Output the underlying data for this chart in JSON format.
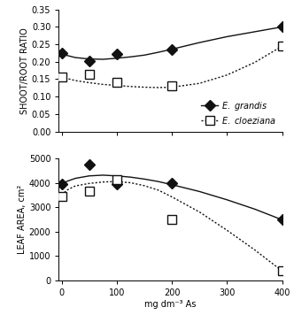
{
  "title": "",
  "xlabel": "mg dm⁻³ As",
  "ylabel_top": "SHOOT/ROOT RATIO",
  "ylabel_bottom": "LEAF AREA, cm²",
  "x_points": [
    0,
    50,
    100,
    200,
    400
  ],
  "grandis_ratio_points": [
    0.225,
    0.202,
    0.222,
    0.236,
    0.3
  ],
  "cloeziana_ratio_points": [
    0.157,
    0.163,
    0.14,
    0.13,
    0.245
  ],
  "grandis_leaf_points": [
    3960,
    4760,
    3960,
    3980,
    2480
  ],
  "cloeziana_leaf_points": [
    3450,
    3640,
    4130,
    2480,
    380
  ],
  "grandis_ratio_curve_x": [
    0,
    10,
    25,
    50,
    75,
    100,
    125,
    150,
    175,
    200,
    250,
    300,
    350,
    400
  ],
  "grandis_ratio_curve_y": [
    0.223,
    0.218,
    0.212,
    0.208,
    0.207,
    0.21,
    0.214,
    0.219,
    0.227,
    0.236,
    0.255,
    0.272,
    0.286,
    0.3
  ],
  "cloeziana_ratio_curve_x": [
    0,
    10,
    25,
    50,
    75,
    100,
    125,
    150,
    175,
    200,
    250,
    300,
    350,
    400
  ],
  "cloeziana_ratio_curve_y": [
    0.157,
    0.152,
    0.146,
    0.14,
    0.135,
    0.132,
    0.129,
    0.127,
    0.126,
    0.127,
    0.138,
    0.162,
    0.198,
    0.245
  ],
  "grandis_leaf_curve_x": [
    0,
    10,
    25,
    50,
    75,
    100,
    125,
    150,
    175,
    200,
    250,
    300,
    350,
    400
  ],
  "grandis_leaf_curve_y": [
    3950,
    4060,
    4180,
    4280,
    4310,
    4280,
    4230,
    4150,
    4050,
    3920,
    3640,
    3300,
    2920,
    2480
  ],
  "cloeziana_leaf_curve_x": [
    0,
    10,
    25,
    50,
    75,
    100,
    125,
    150,
    175,
    200,
    250,
    300,
    350,
    400
  ],
  "cloeziana_leaf_curve_y": [
    3500,
    3700,
    3870,
    3970,
    4030,
    4050,
    4000,
    3880,
    3700,
    3420,
    2800,
    2050,
    1250,
    380
  ],
  "ratio_ylim": [
    0.0,
    0.35
  ],
  "ratio_yticks": [
    0.0,
    0.05,
    0.1,
    0.15,
    0.2,
    0.25,
    0.3,
    0.35
  ],
  "leaf_ylim": [
    0,
    5000
  ],
  "leaf_yticks": [
    0,
    1000,
    2000,
    3000,
    4000,
    5000
  ],
  "xlim": [
    -5,
    400
  ],
  "xticks": [
    0,
    100,
    200,
    300,
    400
  ],
  "grandis_color": "#111111",
  "cloeziana_color": "#111111",
  "bg_color": "#ffffff"
}
